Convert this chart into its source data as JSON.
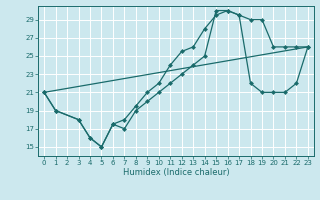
{
  "xlabel": "Humidex (Indice chaleur)",
  "xlim": [
    -0.5,
    23.5
  ],
  "ylim": [
    14,
    30.5
  ],
  "xticks": [
    0,
    1,
    2,
    3,
    4,
    5,
    6,
    7,
    8,
    9,
    10,
    11,
    12,
    13,
    14,
    15,
    16,
    17,
    18,
    19,
    20,
    21,
    22,
    23
  ],
  "yticks": [
    15,
    17,
    19,
    21,
    23,
    25,
    27,
    29
  ],
  "bg_color": "#cce8ee",
  "grid_color": "#ffffff",
  "line_color": "#1a6b6b",
  "curve1": {
    "x": [
      0,
      1,
      3,
      4,
      5,
      6,
      7,
      8,
      9,
      10,
      11,
      12,
      13,
      14,
      15,
      16,
      17,
      18,
      19,
      20,
      21,
      22,
      23
    ],
    "y": [
      21,
      19,
      18,
      16,
      15,
      17.5,
      18,
      19.5,
      21,
      22,
      24,
      25.5,
      26,
      28,
      29.5,
      30,
      29.5,
      29,
      29,
      26,
      26,
      26,
      26
    ]
  },
  "curve2": {
    "x": [
      0,
      1,
      3,
      4,
      5,
      6,
      7,
      8,
      9,
      10,
      11,
      12,
      13,
      14,
      15,
      16,
      17,
      18,
      19,
      20,
      21,
      22,
      23
    ],
    "y": [
      21,
      19,
      18,
      16,
      15,
      17.5,
      17,
      19,
      20,
      21,
      22,
      23,
      24,
      25,
      30,
      30,
      29.5,
      22,
      21,
      21,
      21,
      22,
      26
    ]
  },
  "line3": {
    "x": [
      0,
      23
    ],
    "y": [
      21,
      26
    ]
  },
  "markersize": 2.5,
  "linewidth": 0.9,
  "tick_fontsize": 5,
  "xlabel_fontsize": 6
}
